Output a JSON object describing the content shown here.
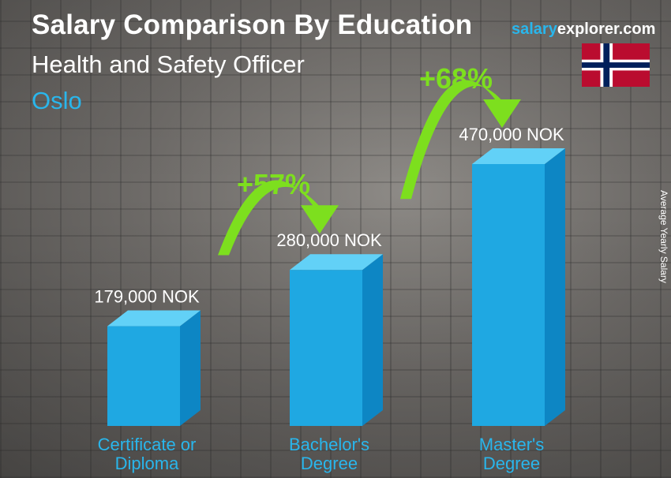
{
  "header": {
    "title": "Salary Comparison By Education",
    "subtitle": "Health and Safety Officer",
    "city": "Oslo"
  },
  "brand": {
    "part1": "salary",
    "part2": "explorer.com"
  },
  "flag": "norway-flag",
  "colors": {
    "bar_front": "#1fa8e2",
    "bar_side": "#0d86c4",
    "bar_top": "#62d1f7",
    "accent": "#29b6ec",
    "arrow": "#7ddf1e"
  },
  "chart_data": {
    "type": "bar",
    "categories": [
      [
        "Certificate or",
        "Diploma"
      ],
      [
        "Bachelor's",
        "Degree"
      ],
      [
        "Master's",
        "Degree"
      ]
    ],
    "values": [
      179000,
      280000,
      470000
    ],
    "value_labels": [
      "179,000 NOK",
      "280,000 NOK",
      "470,000 NOK"
    ],
    "ylabel": "Average Yearly Salary",
    "increases": [
      "+57%",
      "+68%"
    ]
  }
}
